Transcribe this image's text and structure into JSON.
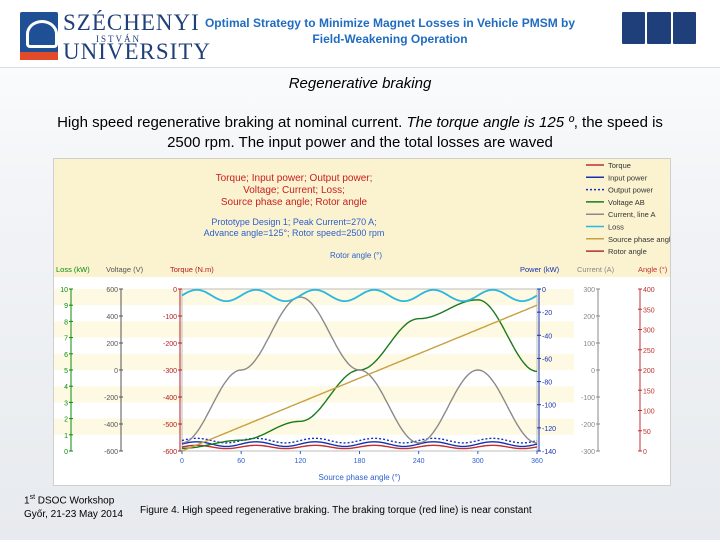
{
  "header": {
    "university_name_line1": "SZÉCHENYI",
    "university_name_small": "ISTVÁN",
    "university_name_line2": "UNIVERSITY",
    "title": "Optimal Strategy to Minimize Magnet Losses in Vehicle PMSM by Field-Weakening Operation"
  },
  "slide": {
    "heading": "Regenerative braking",
    "body_part1": "High speed regenerative braking at nominal current. ",
    "body_italic": "The torque angle is 125 º",
    "body_part2": ", the speed is 2500 rpm. The input power and the total losses are waved"
  },
  "footer": {
    "workshop_num": "1",
    "workshop_sup": "st",
    "workshop_name": " DSOC Workshop",
    "location": "Győr, 21-23 May 2014",
    "caption": "Figure 4. High speed regenerative braking. The braking torque (red line) is near constant"
  },
  "chart_data": {
    "type": "line",
    "title_lines": [
      "Torque; Input power; Output power;",
      "Voltage; Current; Loss;",
      "Source phase angle; Rotor angle"
    ],
    "subtitle_lines": [
      "Prototype Design 1; Peak Current=270 A;",
      "Advance angle=125°; Rotor speed=2500 rpm"
    ],
    "top_axis_label": "Rotor angle (°)",
    "xlabel": "Source phase angle (°)",
    "xlim": [
      0,
      360
    ],
    "x_ticks": [
      "0",
      "60",
      "120",
      "180",
      "240",
      "300",
      "360"
    ],
    "axes": [
      {
        "label": "Loss (kW)",
        "color": "#0a8a0a",
        "ticks": [
          "10",
          "9",
          "8",
          "7",
          "6",
          "5",
          "4",
          "3",
          "2",
          "1",
          "0"
        ]
      },
      {
        "label": "Voltage (V)",
        "color": "#555555",
        "ticks": [
          "600",
          "400",
          "200",
          "0",
          "-200",
          "-400",
          "-600"
        ]
      },
      {
        "label": "Torque (N.m)",
        "color": "#b22020",
        "ticks": [
          "0",
          "-100",
          "-200",
          "-300",
          "-400",
          "-500",
          "-600"
        ]
      },
      {
        "label": "Power (kW)",
        "color": "#1530b0",
        "ticks": [
          "0",
          "-20",
          "-40",
          "-60",
          "-80",
          "-100",
          "-120",
          "-140"
        ]
      },
      {
        "label": "Current (A)",
        "color": "#888888",
        "ticks": [
          "300",
          "200",
          "100",
          "0",
          "-100",
          "-200",
          "-300"
        ]
      },
      {
        "label": "Angle (°)",
        "color": "#c03030",
        "ticks": [
          "400",
          "350",
          "300",
          "250",
          "200",
          "150",
          "100",
          "50",
          "0"
        ]
      }
    ],
    "legend_position": "top-right",
    "legend": [
      {
        "name": "Torque",
        "color": "#c03030",
        "style": "solid"
      },
      {
        "name": "Input power",
        "color": "#1530b0",
        "style": "solid"
      },
      {
        "name": "Output power",
        "color": "#1530b0",
        "style": "dotted"
      },
      {
        "name": "Voltage AB",
        "color": "#1c7a1c",
        "style": "solid"
      },
      {
        "name": "Current, line A",
        "color": "#8a8a8a",
        "style": "solid"
      },
      {
        "name": "Loss",
        "color": "#28b8e0",
        "style": "solid"
      },
      {
        "name": "Source phase angle",
        "color": "#c8a040",
        "style": "solid"
      },
      {
        "name": "Rotor angle",
        "color": "#b03030",
        "style": "solid"
      }
    ],
    "series": [
      {
        "name": "Torque",
        "axis": "Torque (N.m)",
        "shape": "near-constant",
        "x": [
          0,
          90,
          180,
          270,
          360
        ],
        "y": [
          -585,
          -585,
          -585,
          -585,
          -585
        ]
      },
      {
        "name": "Input power",
        "axis": "Power (kW)",
        "shape": "ripple",
        "x": [
          0,
          90,
          180,
          270,
          360
        ],
        "y": [
          -134,
          -134,
          -134,
          -134,
          -134
        ]
      },
      {
        "name": "Output power",
        "axis": "Power (kW)",
        "shape": "ripple",
        "x": [
          0,
          90,
          180,
          270,
          360
        ],
        "y": [
          -131,
          -131,
          -131,
          -131,
          -131
        ]
      },
      {
        "name": "Voltage AB",
        "axis": "Voltage (V)",
        "shape": "sine",
        "x": [
          0,
          60,
          120,
          180,
          240,
          300,
          360
        ],
        "y": [
          -580,
          -520,
          -380,
          0,
          380,
          520,
          -10
        ]
      },
      {
        "name": "Current, line A",
        "axis": "Current (A)",
        "shape": "sine",
        "x": [
          0,
          60,
          120,
          180,
          240,
          300,
          360
        ],
        "y": [
          -270,
          0,
          270,
          0,
          -270,
          0,
          -270
        ]
      },
      {
        "name": "Loss",
        "axis": "Loss (kW)",
        "shape": "ripple",
        "x": [
          0,
          90,
          180,
          270,
          360
        ],
        "y": [
          9.6,
          9.6,
          9.6,
          9.6,
          9.6
        ]
      },
      {
        "name": "Source phase angle",
        "axis": "Angle (°)",
        "shape": "linear",
        "x": [
          0,
          360
        ],
        "y": [
          0,
          360
        ]
      }
    ]
  }
}
